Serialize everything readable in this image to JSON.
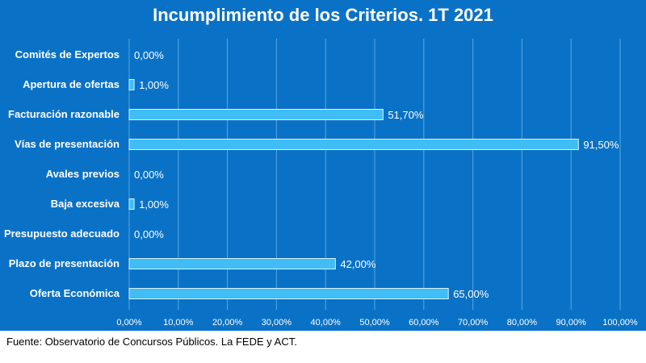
{
  "chart_data": {
    "type": "bar",
    "orientation": "horizontal",
    "title": "Incumplimiento de los Criterios. 1T 2021",
    "categories": [
      "Comités de Expertos",
      "Apertura de ofertas",
      "Facturación razonable",
      "Vías de presentación",
      "Avales previos",
      "Baja excesiva",
      "Presupuesto adecuado",
      "Plazo de presentación",
      "Oferta Económica"
    ],
    "values": [
      0,
      1,
      51.7,
      91.5,
      0,
      1,
      0,
      42,
      65
    ],
    "value_labels": [
      "0,00%",
      "1,00%",
      "51,70%",
      "91,50%",
      "0,00%",
      "1,00%",
      "0,00%",
      "42,00%",
      "65,00%"
    ],
    "xlim": [
      0,
      100
    ],
    "x_ticks": [
      "0,00%",
      "10,00%",
      "20,00%",
      "30,00%",
      "40,00%",
      "50,00%",
      "60,00%",
      "70,00%",
      "80,00%",
      "90,00%",
      "100,00%"
    ],
    "grid": true,
    "legend": "none"
  },
  "source": "Fuente: Observatorio de Concursos Públicos. La FEDE y ACT.",
  "colors": {
    "background": "#0a72c6",
    "bar_fill": "#3fbdf4",
    "bar_stroke": "#d9f3ff",
    "gridline": "#5aa6e0",
    "text": "#ffffff"
  }
}
